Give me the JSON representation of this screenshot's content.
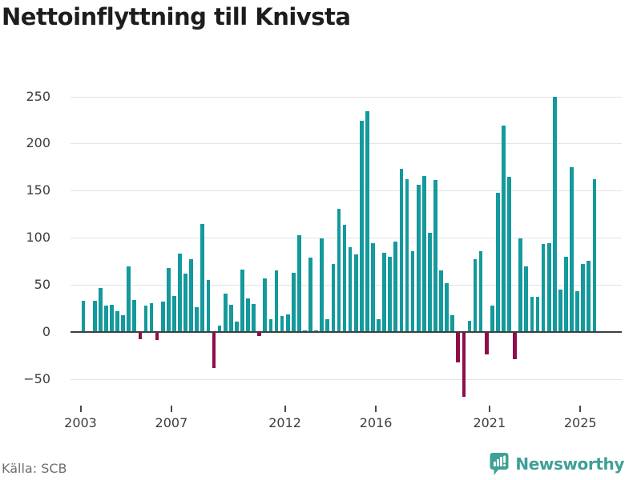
{
  "title": "Nettoinflyttning till Knivsta",
  "source": "Källa: SCB",
  "branding": {
    "name": "Newsworthy",
    "logo_icon": "bar-chart-speech-bubble"
  },
  "colors": {
    "positive_bar": "#14999c",
    "negative_bar": "#8f0d49",
    "gridline": "#e4e4e4",
    "zero_line": "#3f3f3f",
    "axis_text": "#3d3d3d",
    "title_text": "#1d1d1b",
    "source_text": "#707070",
    "brand_teal": "#3fa095"
  },
  "chart_data": {
    "type": "bar",
    "title": "Nettoinflyttning till Knivsta",
    "frequency": "quarterly",
    "start_year": 2003,
    "start_quarter": 1,
    "end_label": "2025 Q3",
    "values": [
      33,
      0,
      33,
      47,
      28,
      29,
      22,
      18,
      70,
      34,
      -7,
      28,
      31,
      -8,
      32,
      68,
      38,
      83,
      62,
      77,
      26,
      115,
      55,
      -37,
      7,
      41,
      29,
      11,
      66,
      36,
      30,
      -3,
      57,
      14,
      65,
      17,
      19,
      63,
      103,
      2,
      79,
      2,
      99,
      14,
      72,
      131,
      114,
      90,
      82,
      224,
      234,
      94,
      14,
      84,
      80,
      96,
      173,
      162,
      86,
      156,
      166,
      105,
      161,
      65,
      52,
      18,
      -31,
      -68,
      12,
      77,
      86,
      -23,
      28,
      148,
      219,
      165,
      -28,
      99,
      70,
      37,
      37,
      93,
      94,
      250,
      45,
      80,
      175,
      43,
      72,
      76,
      162
    ],
    "y_ticks": [
      250,
      200,
      150,
      100,
      50,
      0,
      -50
    ],
    "x_ticks": [
      2003,
      2007,
      2012,
      2016,
      2021,
      2025
    ],
    "ylim": [
      -70,
      255
    ],
    "grid": true,
    "legend": false
  }
}
